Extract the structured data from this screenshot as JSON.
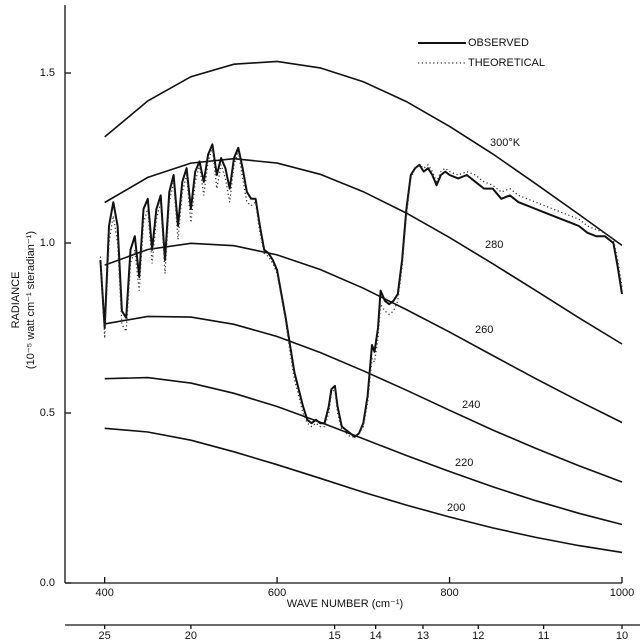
{
  "chart_data": {
    "type": "line",
    "xlabel": "WAVE NUMBER (cm⁻¹)",
    "ylabel": [
      "RADIANCE",
      "(10⁻⁵ watt cm⁻¹ steradian⁻¹)"
    ],
    "xlim": [
      354,
      1000
    ],
    "ylim": [
      0,
      1.7
    ],
    "xticks": [
      400,
      600,
      800,
      1000
    ],
    "yticks": [
      {
        "value": 0,
        "label": "0.0"
      },
      0.5,
      {
        "value": 1,
        "label": "1.0"
      },
      1.5
    ],
    "x2ticks": [
      {
        "value": 400,
        "label": "25"
      },
      {
        "value": 500,
        "label": "20"
      },
      {
        "value": 666.7,
        "label": "15"
      },
      {
        "value": 714.3,
        "label": "14"
      },
      {
        "value": 769.2,
        "label": "13"
      },
      {
        "value": 833.3,
        "label": "12"
      },
      {
        "value": 909.1,
        "label": "11"
      },
      {
        "value": 1000,
        "label": "10"
      }
    ],
    "legend": "top-right",
    "x": [
      395,
      400,
      405,
      410,
      415,
      420,
      425,
      430,
      435,
      440,
      445,
      450,
      455,
      460,
      465,
      470,
      475,
      480,
      485,
      490,
      495,
      500,
      505,
      510,
      515,
      520,
      525,
      530,
      535,
      540,
      545,
      550,
      555,
      560,
      565,
      570,
      575,
      580,
      585,
      590,
      595,
      600,
      605,
      610,
      615,
      620,
      625,
      630,
      635,
      640,
      645,
      650,
      655,
      660,
      663,
      667,
      670,
      675,
      680,
      685,
      690,
      695,
      700,
      705,
      710,
      713,
      717,
      720,
      725,
      730,
      735,
      740,
      745,
      750,
      755,
      760,
      765,
      770,
      775,
      780,
      785,
      790,
      795,
      800,
      810,
      820,
      830,
      840,
      850,
      860,
      870,
      880,
      890,
      900,
      910,
      920,
      930,
      940,
      950,
      960,
      970,
      980,
      990,
      995,
      1000
    ],
    "series": [
      {
        "name": "OBSERVED",
        "color": "#111111",
        "style": "solid",
        "values": [
          0.95,
          0.75,
          1.05,
          1.12,
          1.05,
          0.8,
          0.78,
          0.98,
          1.02,
          0.9,
          1.1,
          1.13,
          0.98,
          1.1,
          1.14,
          0.95,
          1.15,
          1.2,
          1.05,
          1.18,
          1.22,
          1.1,
          1.21,
          1.24,
          1.18,
          1.26,
          1.29,
          1.2,
          1.25,
          1.22,
          1.16,
          1.25,
          1.28,
          1.22,
          1.15,
          1.13,
          1.13,
          1.05,
          0.98,
          0.97,
          0.95,
          0.92,
          0.85,
          0.78,
          0.7,
          0.62,
          0.57,
          0.52,
          0.48,
          0.47,
          0.48,
          0.47,
          0.47,
          0.52,
          0.57,
          0.58,
          0.52,
          0.46,
          0.45,
          0.44,
          0.43,
          0.44,
          0.47,
          0.55,
          0.7,
          0.68,
          0.75,
          0.86,
          0.83,
          0.82,
          0.83,
          0.85,
          0.95,
          1.1,
          1.2,
          1.22,
          1.23,
          1.21,
          1.22,
          1.2,
          1.17,
          1.2,
          1.21,
          1.2,
          1.19,
          1.2,
          1.18,
          1.16,
          1.16,
          1.13,
          1.14,
          1.12,
          1.11,
          1.1,
          1.09,
          1.08,
          1.07,
          1.06,
          1.05,
          1.03,
          1.02,
          1.02,
          1.0,
          0.93,
          0.85
        ]
      },
      {
        "name": "THEORETICAL",
        "color": "#333333",
        "style": "dotted",
        "values": [
          0.96,
          0.72,
          1.0,
          1.08,
          1.0,
          0.76,
          0.74,
          0.94,
          0.98,
          0.86,
          1.06,
          1.1,
          0.94,
          1.07,
          1.12,
          0.91,
          1.12,
          1.18,
          1.01,
          1.15,
          1.2,
          1.06,
          1.18,
          1.23,
          1.14,
          1.24,
          1.28,
          1.16,
          1.23,
          1.19,
          1.12,
          1.23,
          1.27,
          1.19,
          1.12,
          1.11,
          1.12,
          1.03,
          0.97,
          0.96,
          0.94,
          0.91,
          0.84,
          0.77,
          0.68,
          0.6,
          0.55,
          0.5,
          0.47,
          0.46,
          0.47,
          0.46,
          0.46,
          0.5,
          0.56,
          0.57,
          0.5,
          0.45,
          0.44,
          0.43,
          0.43,
          0.44,
          0.46,
          0.53,
          0.66,
          0.65,
          0.72,
          0.82,
          0.8,
          0.79,
          0.8,
          0.83,
          0.93,
          1.08,
          1.19,
          1.22,
          1.23,
          1.22,
          1.23,
          1.21,
          1.18,
          1.21,
          1.22,
          1.21,
          1.2,
          1.21,
          1.2,
          1.18,
          1.17,
          1.15,
          1.16,
          1.14,
          1.13,
          1.12,
          1.11,
          1.1,
          1.09,
          1.08,
          1.07,
          1.05,
          1.04,
          1.03,
          1.01,
          0.95,
          0.87
        ]
      }
    ],
    "curve_x": [
      400,
      450,
      500,
      550,
      600,
      650,
      700,
      750,
      800,
      850,
      900,
      950,
      1000
    ],
    "curves": [
      {
        "label": "300°K",
        "values": [
          1.312,
          1.418,
          1.489,
          1.526,
          1.534,
          1.515,
          1.474,
          1.416,
          1.343,
          1.262,
          1.174,
          1.084,
          0.993
        ]
      },
      {
        "label": "280",
        "values": [
          1.119,
          1.193,
          1.235,
          1.248,
          1.235,
          1.202,
          1.151,
          1.088,
          1.016,
          0.939,
          0.86,
          0.78,
          0.703
        ]
      },
      {
        "label": "260",
        "values": [
          0.935,
          0.981,
          0.999,
          0.992,
          0.965,
          0.922,
          0.867,
          0.804,
          0.738,
          0.669,
          0.601,
          0.535,
          0.472
        ]
      },
      {
        "label": "240",
        "values": [
          0.762,
          0.784,
          0.782,
          0.761,
          0.725,
          0.678,
          0.624,
          0.567,
          0.508,
          0.45,
          0.396,
          0.345,
          0.297
        ]
      },
      {
        "label": "220",
        "values": [
          0.601,
          0.604,
          0.588,
          0.558,
          0.519,
          0.473,
          0.424,
          0.375,
          0.328,
          0.283,
          0.242,
          0.205,
          0.172
        ]
      },
      {
        "label": "200",
        "values": [
          0.455,
          0.444,
          0.42,
          0.386,
          0.348,
          0.308,
          0.267,
          0.229,
          0.194,
          0.162,
          0.134,
          0.11,
          0.09
        ]
      }
    ]
  }
}
